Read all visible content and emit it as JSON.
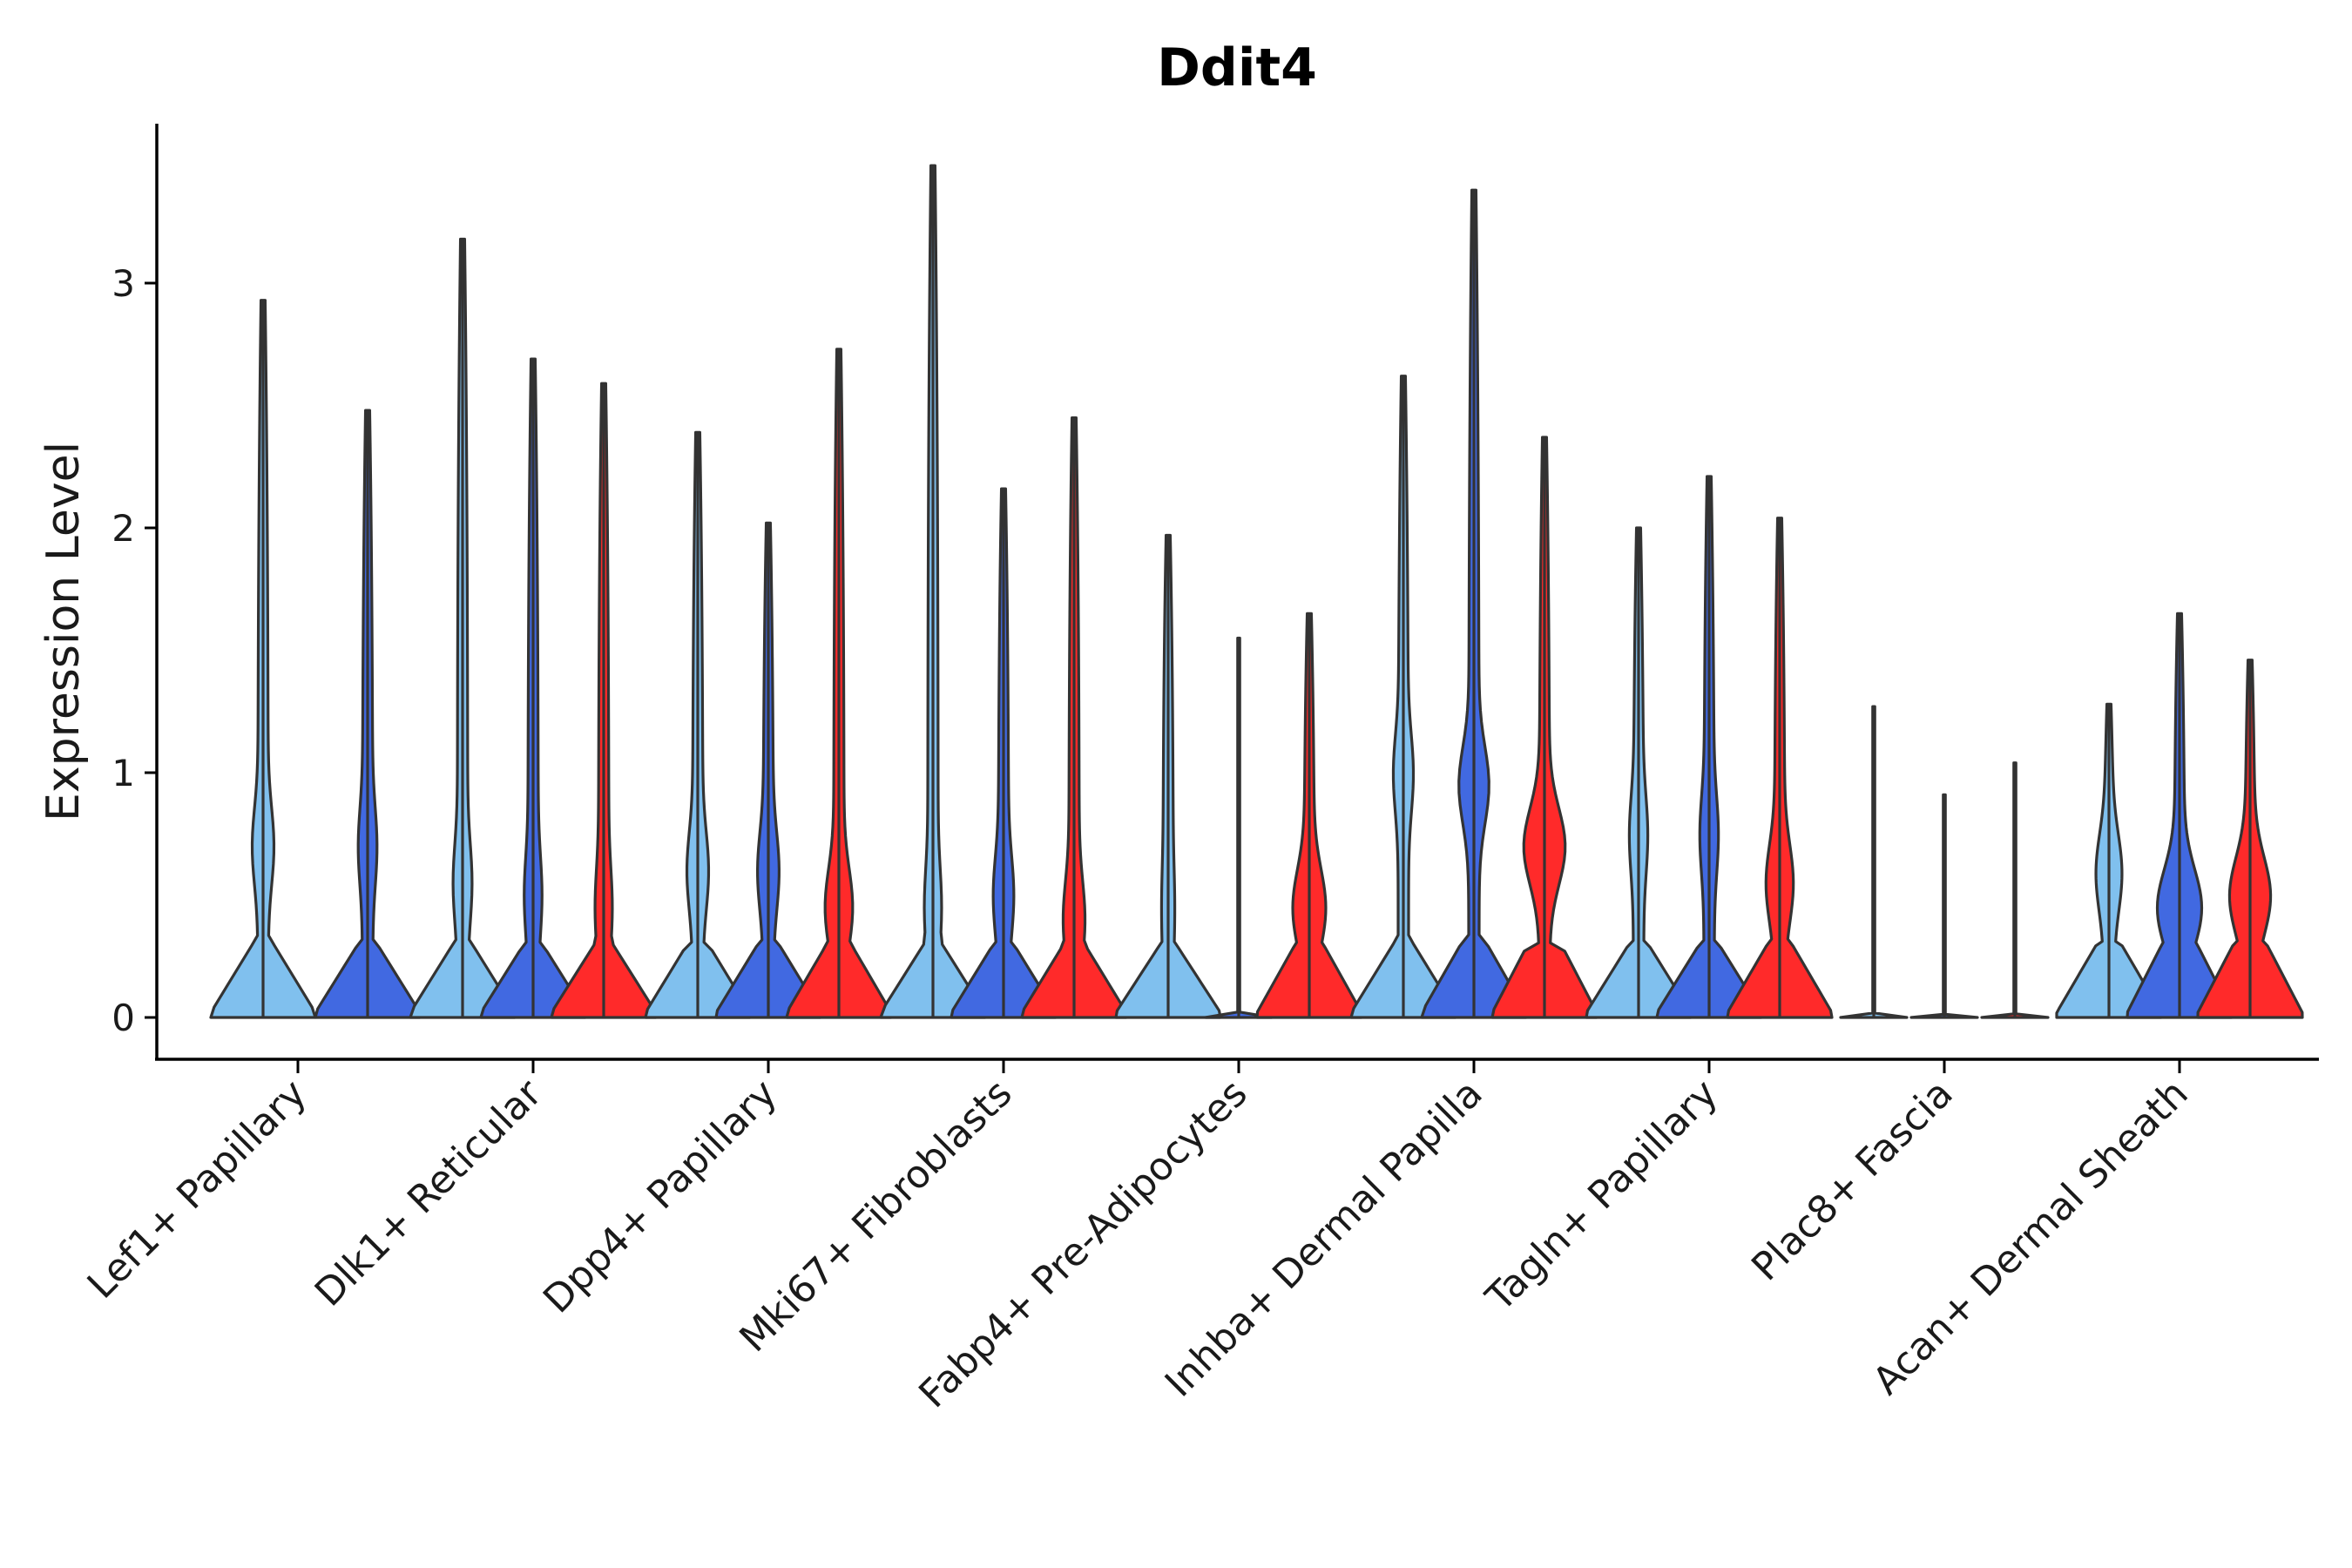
{
  "chart_data": {
    "type": "violin",
    "title": "Ddit4",
    "xlabel": "",
    "ylabel": "Expression Level",
    "ylim": [
      -0.18,
      3.65
    ],
    "yticks": [
      0,
      1,
      2,
      3
    ],
    "grid": false,
    "legend": "none",
    "group_colors": [
      "#80C0EE",
      "#4169E1",
      "#FF2A2A"
    ],
    "categories": [
      {
        "label": "Lef1+ Papillary",
        "violins": [
          {
            "group": 0,
            "max": 2.93,
            "mode": 0.7,
            "modew": 0.2
          },
          {
            "group": 1,
            "max": 2.48,
            "mode": 0.7,
            "modew": 0.15
          }
        ]
      },
      {
        "label": "Dlk1+ Reticular",
        "violins": [
          {
            "group": 0,
            "max": 3.18,
            "mode": 0.55,
            "modew": 0.15
          },
          {
            "group": 1,
            "max": 2.69,
            "mode": 0.5,
            "modew": 0.13
          },
          {
            "group": 2,
            "max": 2.59,
            "mode": 0.45,
            "modew": 0.12
          }
        ]
      },
      {
        "label": "Dpp4+ Papillary",
        "violins": [
          {
            "group": 0,
            "max": 2.39,
            "mode": 0.6,
            "modew": 0.2
          },
          {
            "group": 1,
            "max": 2.02,
            "mode": 0.6,
            "modew": 0.2
          },
          {
            "group": 2,
            "max": 2.73,
            "mode": 0.45,
            "modew": 0.3
          }
        ]
      },
      {
        "label": "Mki67+ Fibroblasts",
        "violins": [
          {
            "group": 0,
            "max": 3.48,
            "mode": 0.45,
            "modew": 0.12
          },
          {
            "group": 1,
            "max": 2.16,
            "mode": 0.5,
            "modew": 0.18
          },
          {
            "group": 2,
            "max": 2.45,
            "mode": 0.4,
            "modew": 0.2
          }
        ]
      },
      {
        "label": "Fabp4+ Pre-Adipocytes",
        "violins": [
          {
            "group": 0,
            "max": 1.97,
            "mode": 0.45,
            "modew": 0.05
          },
          {
            "group": 1,
            "max": 1.55,
            "mode": 0.0,
            "modew": 0.0
          },
          {
            "group": 2,
            "max": 1.65,
            "mode": 0.45,
            "modew": 0.4
          }
        ]
      },
      {
        "label": "Inhba+ Dermal Papilla",
        "violins": [
          {
            "group": 0,
            "max": 2.62,
            "mode": 1.0,
            "modew": 0.18
          },
          {
            "group": 1,
            "max": 3.38,
            "mode": 0.95,
            "modew": 0.35
          },
          {
            "group": 2,
            "max": 2.37,
            "mode": 0.7,
            "modew": 0.55
          }
        ]
      },
      {
        "label": "Tagln+ Papillary",
        "violins": [
          {
            "group": 0,
            "max": 2.0,
            "mode": 0.75,
            "modew": 0.15
          },
          {
            "group": 1,
            "max": 2.21,
            "mode": 0.75,
            "modew": 0.15
          },
          {
            "group": 2,
            "max": 2.04,
            "mode": 0.55,
            "modew": 0.3
          }
        ]
      },
      {
        "label": "Plac8+ Fascia",
        "violins": [
          {
            "group": 0,
            "max": 1.27,
            "mode": 0.0,
            "modew": 0.0
          },
          {
            "group": 1,
            "max": 0.91,
            "mode": 0.0,
            "modew": 0.0
          },
          {
            "group": 2,
            "max": 1.04,
            "mode": 0.0,
            "modew": 0.0
          }
        ]
      },
      {
        "label": "Acan+ Dermal Sheath",
        "violins": [
          {
            "group": 0,
            "max": 1.28,
            "mode": 0.6,
            "modew": 0.3
          },
          {
            "group": 1,
            "max": 1.65,
            "mode": 0.45,
            "modew": 0.6
          },
          {
            "group": 2,
            "max": 1.46,
            "mode": 0.5,
            "modew": 0.55
          }
        ]
      }
    ]
  }
}
